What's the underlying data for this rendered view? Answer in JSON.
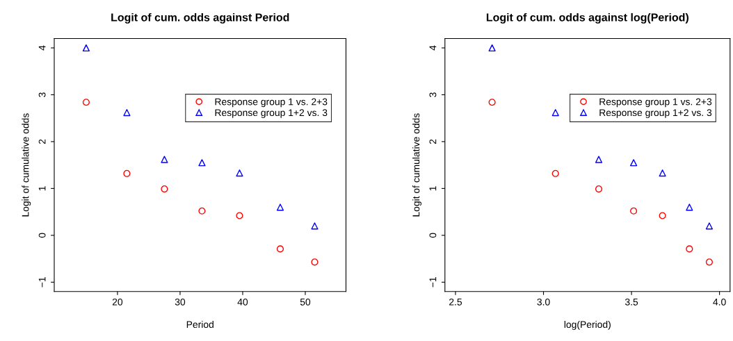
{
  "chart_data": [
    {
      "type": "scatter",
      "title": "Logit of cum. odds against Period",
      "xlabel": "Period",
      "ylabel": "Logit of cumulative odds",
      "x": [
        15,
        21.5,
        27.5,
        33.5,
        39.5,
        46,
        51.5
      ],
      "series": [
        {
          "name": "Response group 1 vs. 2+3",
          "color": "#ff0000",
          "marker": "circle",
          "values": [
            2.84,
            1.32,
            0.99,
            0.52,
            0.42,
            -0.29,
            -0.57
          ]
        },
        {
          "name": "Response group 1+2 vs. 3",
          "color": "#0000ff",
          "marker": "triangle",
          "values": [
            4.0,
            2.62,
            1.62,
            1.55,
            1.33,
            0.6,
            0.2
          ]
        }
      ],
      "xlim": [
        9.9,
        56.5
      ],
      "xticks": [
        20,
        30,
        40,
        50
      ],
      "ylim": [
        -1.2,
        4.2
      ],
      "yticks": [
        {
          "value": -1,
          "label": "−1"
        },
        0,
        1,
        2,
        3,
        4
      ],
      "grid": false,
      "legend": "top right"
    },
    {
      "type": "scatter",
      "title": "Logit of cum. odds against log(Period)",
      "xlabel": "log(Period)",
      "ylabel": "Logit of cumulative odds",
      "x": [
        2.708,
        3.068,
        3.314,
        3.512,
        3.676,
        3.829,
        3.942
      ],
      "series": [
        {
          "name": "Response group 1 vs. 2+3",
          "color": "#ff0000",
          "marker": "circle",
          "values": [
            2.84,
            1.32,
            0.99,
            0.52,
            0.42,
            -0.29,
            -0.57
          ]
        },
        {
          "name": "Response group 1+2 vs. 3",
          "color": "#0000ff",
          "marker": "triangle",
          "values": [
            4.0,
            2.62,
            1.62,
            1.55,
            1.33,
            0.6,
            0.2
          ]
        }
      ],
      "xlim": [
        2.44,
        4.06
      ],
      "xticks": [
        2.5,
        {
          "value": 3,
          "label": "3.0"
        },
        3.5,
        {
          "value": 4,
          "label": "4.0"
        }
      ],
      "ylim": [
        -1.2,
        4.2
      ],
      "yticks": [
        {
          "value": -1,
          "label": "−1"
        },
        0,
        1,
        2,
        3,
        4
      ],
      "grid": false,
      "legend": "top right"
    }
  ]
}
